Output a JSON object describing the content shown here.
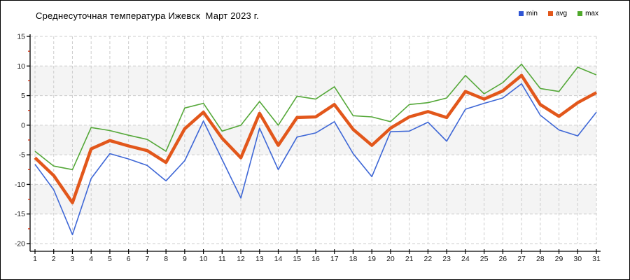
{
  "title": "Среднесуточная температура Ижевск  Март 2023 г.",
  "legend": [
    {
      "label": "min",
      "color": "#2f55d4"
    },
    {
      "label": "avg",
      "color": "#e2571b"
    },
    {
      "label": "max",
      "color": "#4ea82a"
    }
  ],
  "axis_style": {
    "grid_color": "#cccccc",
    "band_color": "#f4f4f4",
    "axis_color": "#000000",
    "minor_tick_color": "#cc2200",
    "tick_label_color": "#1a1a1a"
  },
  "chart_data": {
    "type": "line",
    "title": "Среднесуточная температура Ижевск  Март 2023 г.",
    "xlabel": "",
    "ylabel": "",
    "x": [
      1,
      2,
      3,
      4,
      5,
      6,
      7,
      8,
      9,
      10,
      11,
      12,
      13,
      14,
      15,
      16,
      17,
      18,
      19,
      20,
      21,
      22,
      23,
      24,
      25,
      26,
      27,
      28,
      29,
      30,
      31
    ],
    "ylim": [
      -20,
      15
    ],
    "y_major_step": 5,
    "y_minor_step": 2.5,
    "grid": true,
    "legend_position": "top-right",
    "gray_bands": [
      [
        10,
        5
      ],
      [
        0,
        -5
      ],
      [
        -10,
        -15
      ]
    ],
    "series": [
      {
        "name": "min",
        "color": "#3e67d6",
        "width": 1.6,
        "values": [
          -6.6,
          -10.9,
          -18.5,
          -9.0,
          -4.8,
          -5.7,
          -6.8,
          -9.4,
          -6.0,
          0.7,
          -5.8,
          -12.3,
          -0.5,
          -7.5,
          -2.0,
          -1.3,
          0.6,
          -4.8,
          -8.7,
          -1.1,
          -1.0,
          0.5,
          -2.7,
          2.7,
          3.7,
          4.6,
          7.0,
          1.7,
          -0.8,
          -1.8,
          2.2
        ]
      },
      {
        "name": "avg",
        "color": "#e2571b",
        "width": 4.5,
        "values": [
          -5.5,
          -8.5,
          -13.1,
          -4.0,
          -2.6,
          -3.5,
          -4.3,
          -6.3,
          -0.6,
          2.2,
          -2.2,
          -5.5,
          2.0,
          -3.4,
          1.3,
          1.4,
          3.5,
          -0.7,
          -3.4,
          -0.5,
          1.4,
          2.3,
          1.3,
          5.7,
          4.4,
          5.8,
          8.4,
          3.5,
          1.5,
          3.8,
          5.5
        ]
      },
      {
        "name": "max",
        "color": "#55a839",
        "width": 1.6,
        "values": [
          -4.4,
          -6.9,
          -7.5,
          -0.4,
          -0.9,
          -1.7,
          -2.4,
          -4.4,
          2.9,
          3.7,
          -1.0,
          0.0,
          4.0,
          0.0,
          4.9,
          4.4,
          6.5,
          1.6,
          1.4,
          0.6,
          3.5,
          3.8,
          4.6,
          8.4,
          5.3,
          7.2,
          10.3,
          6.2,
          5.7,
          9.8,
          8.5
        ]
      }
    ]
  }
}
